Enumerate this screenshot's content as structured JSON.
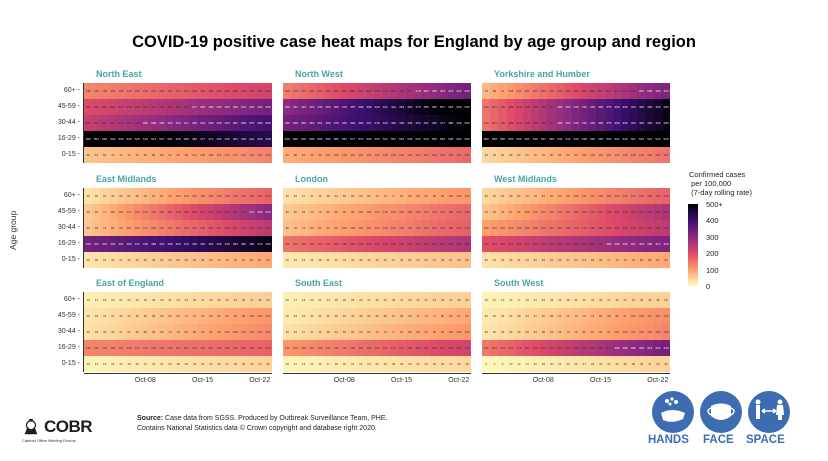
{
  "chart_data": {
    "type": "heatmap",
    "title": "COVID-19 positive case heat maps for England by age group and region",
    "ylabel": "Age group",
    "xlabel": "",
    "x_tick_labels": [
      "Oct-08",
      "Oct-15",
      "Oct-22"
    ],
    "x_tick_indices": [
      7,
      14,
      21
    ],
    "n_days": 23,
    "age_groups": [
      "60+",
      "45-59",
      "30-44",
      "16-29",
      "0-15"
    ],
    "color_scale": {
      "title": "Confirmed cases\n per 100,000\n (7-day rolling rate)",
      "min": 0,
      "max": 500,
      "ticks": [
        "500+",
        "400",
        "300",
        "200",
        "100",
        "0"
      ],
      "tick_values": [
        500,
        400,
        300,
        200,
        100,
        0
      ],
      "palette": [
        "#fcfdbf",
        "#fe9f6d",
        "#de4968",
        "#8c2981",
        "#3b0f70",
        "#000004"
      ]
    },
    "panels": [
      {
        "region": "North East",
        "rows": {
          "60+": {
            "start": 130,
            "end": 215
          },
          "45-59": {
            "start": 200,
            "end": 330
          },
          "30-44": {
            "start": 230,
            "end": 390
          },
          "16-29": {
            "start": 560,
            "end": 430
          },
          "0-15": {
            "start": 60,
            "end": 130
          }
        }
      },
      {
        "region": "North West",
        "rows": {
          "60+": {
            "start": 140,
            "end": 330
          },
          "45-59": {
            "start": 300,
            "end": 540
          },
          "30-44": {
            "start": 330,
            "end": 500
          },
          "16-29": {
            "start": 610,
            "end": 520
          },
          "0-15": {
            "start": 85,
            "end": 160
          }
        }
      },
      {
        "region": "Yorkshire and Humber",
        "rows": {
          "60+": {
            "start": 75,
            "end": 320
          },
          "45-59": {
            "start": 150,
            "end": 480
          },
          "30-44": {
            "start": 150,
            "end": 480
          },
          "16-29": {
            "start": 560,
            "end": 520
          },
          "0-15": {
            "start": 40,
            "end": 150
          }
        }
      },
      {
        "region": "East Midlands",
        "rows": {
          "60+": {
            "start": 30,
            "end": 170
          },
          "45-59": {
            "start": 55,
            "end": 300
          },
          "30-44": {
            "start": 60,
            "end": 240
          },
          "16-29": {
            "start": 330,
            "end": 480
          },
          "0-15": {
            "start": 25,
            "end": 90
          }
        }
      },
      {
        "region": "London",
        "rows": {
          "60+": {
            "start": 30,
            "end": 110
          },
          "45-59": {
            "start": 55,
            "end": 165
          },
          "30-44": {
            "start": 65,
            "end": 175
          },
          "16-29": {
            "start": 150,
            "end": 260
          },
          "0-15": {
            "start": 20,
            "end": 65
          }
        }
      },
      {
        "region": "West Midlands",
        "rows": {
          "60+": {
            "start": 40,
            "end": 170
          },
          "45-59": {
            "start": 60,
            "end": 260
          },
          "30-44": {
            "start": 100,
            "end": 240
          },
          "16-29": {
            "start": 195,
            "end": 320
          },
          "0-15": {
            "start": 30,
            "end": 90
          }
        }
      },
      {
        "region": "East of England",
        "rows": {
          "60+": {
            "start": 15,
            "end": 50
          },
          "45-59": {
            "start": 25,
            "end": 110
          },
          "30-44": {
            "start": 30,
            "end": 125
          },
          "16-29": {
            "start": 130,
            "end": 170
          },
          "0-15": {
            "start": 10,
            "end": 45
          }
        }
      },
      {
        "region": "South East",
        "rows": {
          "60+": {
            "start": 15,
            "end": 50
          },
          "45-59": {
            "start": 20,
            "end": 90
          },
          "30-44": {
            "start": 30,
            "end": 110
          },
          "16-29": {
            "start": 110,
            "end": 215
          },
          "0-15": {
            "start": 10,
            "end": 40
          }
        }
      },
      {
        "region": "South West",
        "rows": {
          "60+": {
            "start": 10,
            "end": 50
          },
          "45-59": {
            "start": 20,
            "end": 120
          },
          "30-44": {
            "start": 25,
            "end": 130
          },
          "16-29": {
            "start": 145,
            "end": 330
          },
          "0-15": {
            "start": 5,
            "end": 45
          }
        }
      }
    ]
  },
  "footer": {
    "source_label": "Source:",
    "source_text": " Case data from SGSS. Produced by Outbreak Surveillance Team, PHE.",
    "source_line2": "Contains National Statistics data © Crown copyright and database right 2020.",
    "logo_text": "COBR",
    "logo_sub": "Cabinet Office Briefing Rooms",
    "campaign": [
      {
        "label": "HANDS",
        "icon": "hands-washing-icon"
      },
      {
        "label": "FACE",
        "icon": "face-mask-icon"
      },
      {
        "label": "SPACE",
        "icon": "social-distance-icon"
      }
    ]
  }
}
